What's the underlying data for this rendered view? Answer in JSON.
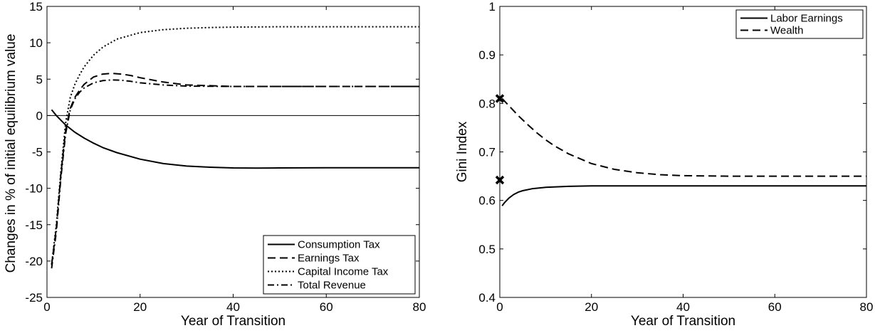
{
  "chart_data": [
    {
      "type": "line",
      "title": "",
      "xlabel": "Year of Transition",
      "ylabel": "Changes in % of initial equilibrium value",
      "xlim": [
        0,
        80
      ],
      "ylim": [
        -25,
        15
      ],
      "xticks": [
        0,
        20,
        40,
        60,
        80
      ],
      "yticks": [
        15,
        10,
        5,
        0,
        -5,
        -10,
        -15,
        -20,
        -25
      ],
      "reference_line": 0,
      "grid": false,
      "legend_position": "bottom-right",
      "series": [
        {
          "name": "Consumption Tax",
          "style": "solid",
          "x": [
            1,
            2,
            4,
            6,
            8,
            10,
            12,
            15,
            20,
            25,
            30,
            35,
            40,
            45,
            50,
            60,
            70,
            80
          ],
          "y": [
            0.8,
            0.0,
            -1.3,
            -2.3,
            -3.1,
            -3.8,
            -4.4,
            -5.1,
            -6.0,
            -6.6,
            -6.95,
            -7.1,
            -7.2,
            -7.22,
            -7.2,
            -7.18,
            -7.18,
            -7.18
          ]
        },
        {
          "name": "Earnings Tax",
          "style": "dashed",
          "x": [
            1,
            2,
            3,
            4,
            5,
            6,
            7,
            8,
            10,
            12,
            14,
            16,
            18,
            20,
            25,
            30,
            40,
            50,
            60,
            70,
            80
          ],
          "y": [
            -20.5,
            -15.5,
            -8.0,
            -2.0,
            1.0,
            2.5,
            3.5,
            4.3,
            5.3,
            5.7,
            5.8,
            5.7,
            5.5,
            5.2,
            4.6,
            4.2,
            4.0,
            4.0,
            4.0,
            4.0,
            4.0
          ]
        },
        {
          "name": "Capital Income Tax",
          "style": "dotted",
          "x": [
            1,
            2,
            3,
            4,
            5,
            6,
            7,
            8,
            10,
            12,
            15,
            20,
            25,
            30,
            35,
            40,
            50,
            60,
            70,
            80
          ],
          "y": [
            -20.5,
            -15.0,
            -7.5,
            -1.0,
            2.5,
            4.3,
            5.6,
            6.7,
            8.3,
            9.4,
            10.5,
            11.4,
            11.8,
            12.0,
            12.1,
            12.15,
            12.2,
            12.2,
            12.2,
            12.2
          ]
        },
        {
          "name": "Total Revenue",
          "style": "dashdot",
          "x": [
            1,
            2,
            3,
            4,
            5,
            6,
            7,
            8,
            10,
            12,
            14,
            16,
            18,
            20,
            25,
            30,
            40,
            50,
            60,
            70,
            80
          ],
          "y": [
            -21.0,
            -16.0,
            -8.5,
            -2.5,
            0.8,
            2.3,
            3.2,
            3.8,
            4.5,
            4.8,
            4.9,
            4.85,
            4.7,
            4.5,
            4.2,
            4.05,
            4.0,
            4.0,
            4.0,
            4.0,
            4.0
          ]
        }
      ]
    },
    {
      "type": "line",
      "title": "",
      "xlabel": "Year of Transition",
      "ylabel": "Gini Index",
      "xlim": [
        0,
        80
      ],
      "ylim": [
        0.4,
        1
      ],
      "xticks": [
        0,
        20,
        40,
        60,
        80
      ],
      "yticks": [
        "1",
        "0.9",
        "0.8",
        "0.7",
        "0.6",
        "0.5",
        "0.4"
      ],
      "grid": false,
      "legend_position": "top-right",
      "series": [
        {
          "name": "Labor Earnings",
          "style": "solid",
          "x": [
            0.5,
            1,
            2,
            3,
            4,
            5,
            7,
            10,
            15,
            20,
            30,
            40,
            60,
            80
          ],
          "y": [
            0.589,
            0.595,
            0.605,
            0.612,
            0.617,
            0.62,
            0.624,
            0.627,
            0.629,
            0.63,
            0.63,
            0.63,
            0.63,
            0.63
          ]
        },
        {
          "name": "Wealth",
          "style": "dashed",
          "x": [
            0.5,
            2,
            4,
            6,
            8,
            10,
            12,
            15,
            20,
            25,
            30,
            35,
            40,
            50,
            60,
            70,
            80
          ],
          "y": [
            0.81,
            0.795,
            0.775,
            0.757,
            0.74,
            0.725,
            0.712,
            0.696,
            0.676,
            0.664,
            0.657,
            0.653,
            0.651,
            0.65,
            0.65,
            0.65,
            0.65
          ]
        }
      ],
      "markers": [
        {
          "name": "initial-wealth-gini",
          "symbol": "x",
          "x": 0,
          "y": 0.81
        },
        {
          "name": "initial-earnings-gini",
          "symbol": "x",
          "x": 0,
          "y": 0.642
        }
      ]
    }
  ]
}
